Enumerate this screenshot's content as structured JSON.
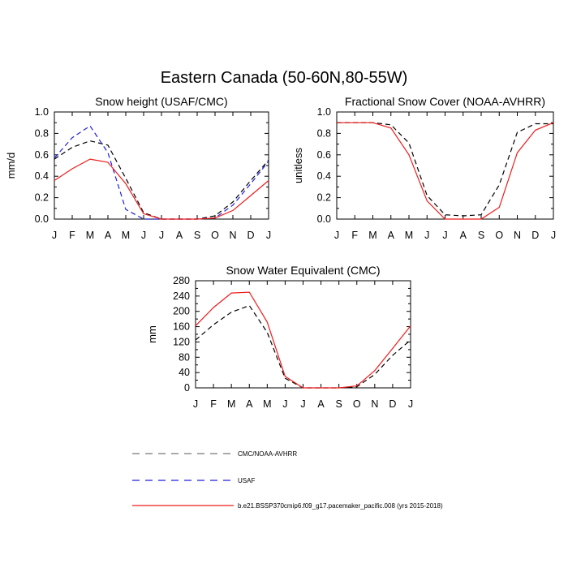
{
  "title": "Eastern Canada (50-60N,80-55W)",
  "colors": {
    "cmc": "#000000",
    "usaf": "#1f1fe0",
    "model": "#ee1c1c"
  },
  "legend": [
    {
      "label": "CMC/NOAA-AVHRR",
      "color": "#000000",
      "style": "dashed"
    },
    {
      "label": "USAF",
      "color": "#1f1fe0",
      "style": "dashed"
    },
    {
      "label": "b.e21.BSSP370cmip6.f09_g17.pacemaker_pacific.008 (yrs 2015-2018)",
      "color": "#ee1c1c",
      "style": "solid"
    }
  ],
  "chart_data": [
    {
      "type": "line",
      "title": "Snow height (USAF/CMC)",
      "ylabel": "mm/d",
      "categories": [
        "J",
        "F",
        "M",
        "A",
        "M",
        "J",
        "J",
        "A",
        "S",
        "O",
        "N",
        "D",
        "J"
      ],
      "ylim": [
        0,
        1.0
      ],
      "yticks": [
        "0.0",
        "0.2",
        "0.4",
        "0.6",
        "0.8",
        "1.0"
      ],
      "series": [
        {
          "name": "CMC/NOAA-AVHRR",
          "color": "#000000",
          "style": "dashed",
          "values": [
            0.56,
            0.67,
            0.73,
            0.69,
            0.38,
            0.06,
            0.0,
            0.0,
            0.0,
            0.03,
            0.16,
            0.36,
            0.55
          ]
        },
        {
          "name": "USAF",
          "color": "#1f1fe0",
          "style": "dashed",
          "values": [
            0.57,
            0.76,
            0.87,
            0.62,
            0.09,
            0.0,
            0.0,
            0.0,
            0.0,
            0.01,
            0.13,
            0.33,
            0.54
          ]
        },
        {
          "name": "b.e21.BSSP370cmip6.f09_g17.pacemaker_pacific.008 (yrs 2015-2018)",
          "color": "#ee1c1c",
          "style": "solid",
          "values": [
            0.36,
            0.47,
            0.56,
            0.53,
            0.33,
            0.05,
            0.0,
            0.0,
            0.0,
            0.01,
            0.08,
            0.22,
            0.36
          ]
        }
      ]
    },
    {
      "type": "line",
      "title": "Fractional Snow Cover (NOAA-AVHRR)",
      "ylabel": "unitless",
      "categories": [
        "J",
        "F",
        "M",
        "A",
        "M",
        "J",
        "J",
        "A",
        "S",
        "O",
        "N",
        "D",
        "J"
      ],
      "ylim": [
        0,
        1.0
      ],
      "yticks": [
        "0.0",
        "0.2",
        "0.4",
        "0.6",
        "0.8",
        "1.0"
      ],
      "series": [
        {
          "name": "CMC/NOAA-AVHRR",
          "color": "#000000",
          "style": "dashed",
          "values": [
            0.9,
            0.9,
            0.9,
            0.88,
            0.71,
            0.22,
            0.04,
            0.03,
            0.04,
            0.32,
            0.81,
            0.89,
            0.89
          ]
        },
        {
          "name": "b.e21.BSSP370cmip6.f09_g17.pacemaker_pacific.008 (yrs 2015-2018)",
          "color": "#ee1c1c",
          "style": "solid",
          "values": [
            0.9,
            0.9,
            0.9,
            0.85,
            0.6,
            0.17,
            0.0,
            0.0,
            0.0,
            0.11,
            0.62,
            0.83,
            0.9
          ]
        }
      ]
    },
    {
      "type": "line",
      "title": "Snow Water Equivalent (CMC)",
      "ylabel": "mm",
      "categories": [
        "J",
        "F",
        "M",
        "A",
        "M",
        "J",
        "J",
        "A",
        "S",
        "O",
        "N",
        "D",
        "J"
      ],
      "ylim": [
        0,
        280
      ],
      "yticks": [
        "0",
        "40",
        "80",
        "120",
        "160",
        "200",
        "240",
        "280"
      ],
      "series": [
        {
          "name": "CMC/NOAA-AVHRR",
          "color": "#000000",
          "style": "dashed",
          "values": [
            125,
            165,
            198,
            215,
            145,
            25,
            0,
            0,
            0,
            3,
            35,
            85,
            125
          ]
        },
        {
          "name": "b.e21.BSSP370cmip6.f09_g17.pacemaker_pacific.008 (yrs 2015-2018)",
          "color": "#ee1c1c",
          "style": "solid",
          "values": [
            162,
            210,
            248,
            250,
            172,
            30,
            0,
            0,
            0,
            5,
            45,
            103,
            162
          ]
        }
      ]
    }
  ]
}
